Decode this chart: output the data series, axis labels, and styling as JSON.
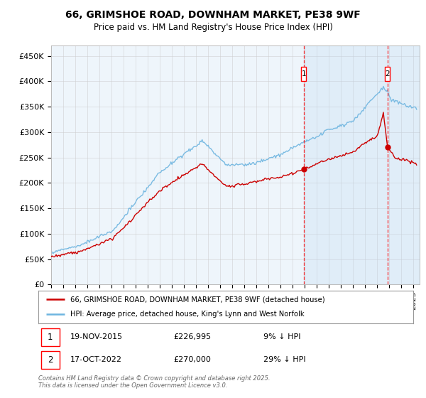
{
  "title": "66, GRIMSHOE ROAD, DOWNHAM MARKET, PE38 9WF",
  "subtitle": "Price paid vs. HM Land Registry's House Price Index (HPI)",
  "ylabel_ticks": [
    "£0",
    "£50K",
    "£100K",
    "£150K",
    "£200K",
    "£250K",
    "£300K",
    "£350K",
    "£400K",
    "£450K"
  ],
  "ytick_values": [
    0,
    50000,
    100000,
    150000,
    200000,
    250000,
    300000,
    350000,
    400000,
    450000
  ],
  "ylim": [
    0,
    470000
  ],
  "xlim_start": 1995.0,
  "xlim_end": 2025.5,
  "hpi_color": "#6EB5E0",
  "price_color": "#CC0000",
  "shade_color": "#DDEEFF",
  "marker1_date": 2015.9,
  "marker2_date": 2022.83,
  "marker1_price": 226995,
  "marker2_price": 270000,
  "legend_line1": "66, GRIMSHOE ROAD, DOWNHAM MARKET, PE38 9WF (detached house)",
  "legend_line2": "HPI: Average price, detached house, King's Lynn and West Norfolk",
  "annotation1_date": "19-NOV-2015",
  "annotation1_price": "£226,995",
  "annotation1_hpi": "9% ↓ HPI",
  "annotation2_date": "17-OCT-2022",
  "annotation2_price": "£270,000",
  "annotation2_hpi": "29% ↓ HPI",
  "footer": "Contains HM Land Registry data © Crown copyright and database right 2025.\nThis data is licensed under the Open Government Licence v3.0.",
  "bg_color": "#FFFFFF",
  "plot_bg_color": "#EEF5FB",
  "grid_color": "#CCCCCC"
}
